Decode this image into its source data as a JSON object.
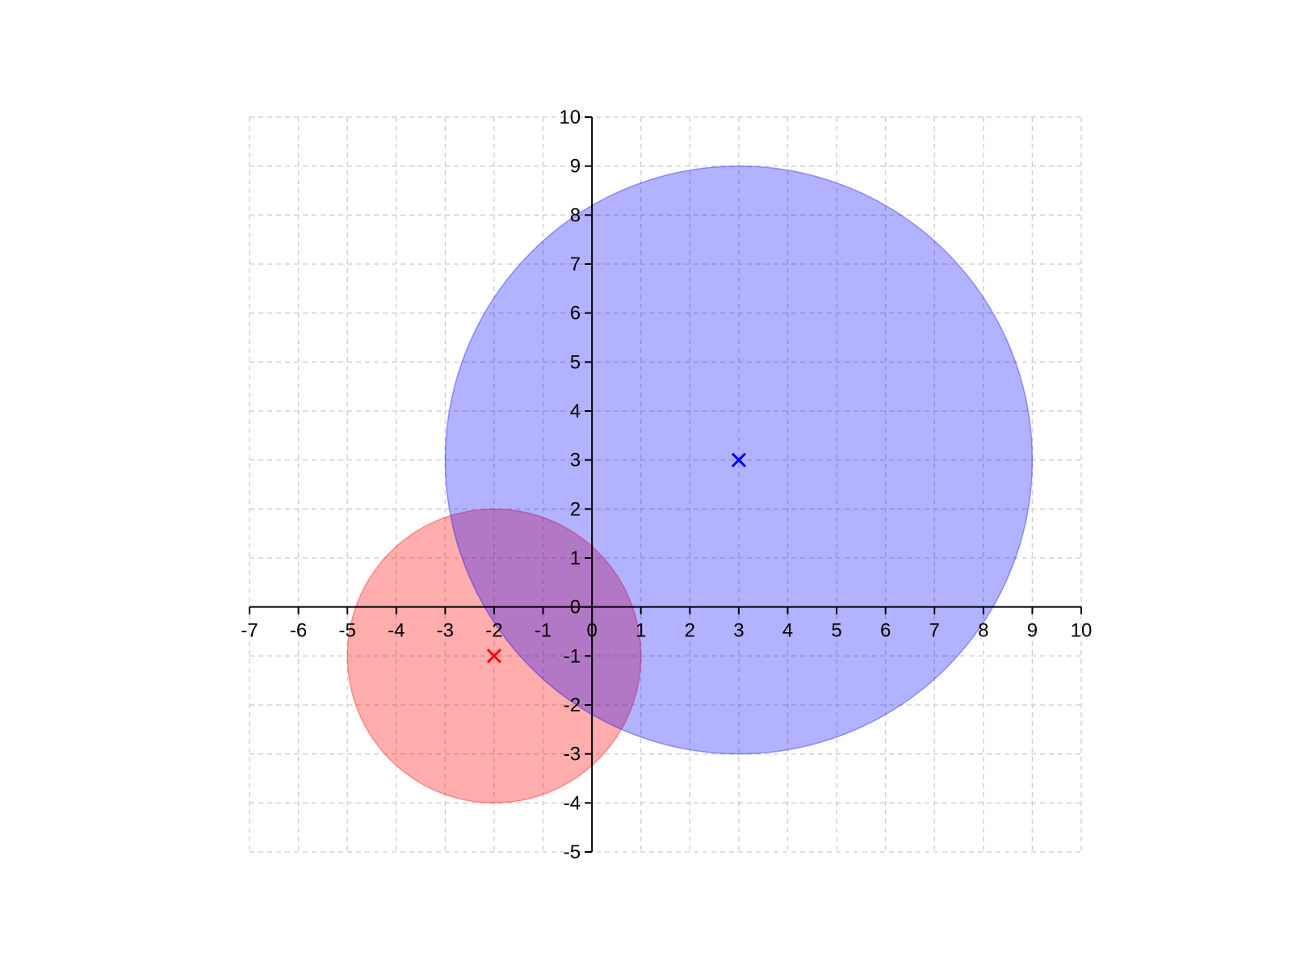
{
  "chart_data": {
    "type": "scatter",
    "title": "",
    "xlabel": "",
    "ylabel": "",
    "xlim": [
      -7,
      10
    ],
    "ylim": [
      -5,
      10
    ],
    "x_ticks": [
      -7,
      -6,
      -5,
      -4,
      -3,
      -2,
      -1,
      0,
      1,
      2,
      3,
      4,
      5,
      6,
      7,
      8,
      9,
      10
    ],
    "y_ticks": [
      -5,
      -4,
      -3,
      -2,
      -1,
      0,
      1,
      2,
      3,
      4,
      5,
      6,
      7,
      8,
      9,
      10
    ],
    "grid": true,
    "grid_style": "dashed",
    "spines": "centered at origin",
    "legend": "none",
    "circles": [
      {
        "center": [
          -2,
          -1
        ],
        "radius": 3,
        "fill_color": "#ff0000",
        "fill_opacity": 0.32,
        "marker": "x",
        "marker_color": "#ff0000"
      },
      {
        "center": [
          3,
          3
        ],
        "radius": 6,
        "fill_color": "#0000ff",
        "fill_opacity": 0.3,
        "marker": "x",
        "marker_color": "#0000ff"
      }
    ]
  }
}
